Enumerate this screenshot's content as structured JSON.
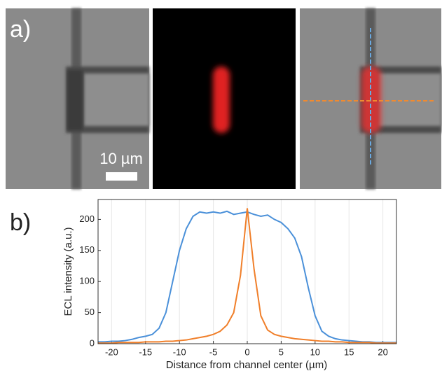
{
  "panels": {
    "a_label": "a)",
    "scale_bar": "10 µm",
    "b_label": "b)"
  },
  "chart_data": {
    "type": "line",
    "x_label": "Distance from channel center (µm)",
    "y_label": "ECL intensity (a.u.)",
    "x": [
      -22,
      -21,
      -20,
      -19,
      -18,
      -17,
      -16,
      -15,
      -14,
      -13,
      -12,
      -11,
      -10,
      -9,
      -8,
      -7,
      -6,
      -5,
      -4,
      -3,
      -2,
      -1,
      0,
      1,
      2,
      3,
      4,
      5,
      6,
      7,
      8,
      9,
      10,
      11,
      12,
      13,
      14,
      15,
      16,
      17,
      18,
      19,
      20,
      21,
      22
    ],
    "series": [
      {
        "color": "#4a90d9",
        "values": [
          3,
          3,
          4,
          4,
          5,
          7,
          10,
          12,
          15,
          25,
          50,
          100,
          150,
          185,
          205,
          212,
          210,
          212,
          210,
          213,
          208,
          210,
          212,
          208,
          205,
          207,
          200,
          195,
          185,
          170,
          140,
          90,
          45,
          20,
          12,
          8,
          6,
          5,
          4,
          3,
          3,
          2,
          2,
          2,
          2
        ]
      },
      {
        "color": "#f07f2a",
        "values": [
          1,
          1,
          1,
          2,
          2,
          2,
          2,
          3,
          3,
          3,
          4,
          4,
          5,
          6,
          8,
          10,
          12,
          15,
          20,
          30,
          50,
          110,
          218,
          120,
          45,
          22,
          15,
          12,
          10,
          8,
          7,
          6,
          5,
          4,
          4,
          3,
          3,
          2,
          2,
          2,
          2,
          1,
          1,
          1,
          1
        ]
      }
    ],
    "xlim": [
      -22,
      22
    ],
    "ylim": [
      0,
      232
    ],
    "xticks": [
      -20,
      -15,
      -10,
      -5,
      0,
      5,
      10,
      15,
      20
    ],
    "yticks": [
      0,
      50,
      100,
      150,
      200
    ],
    "grid": "x"
  }
}
